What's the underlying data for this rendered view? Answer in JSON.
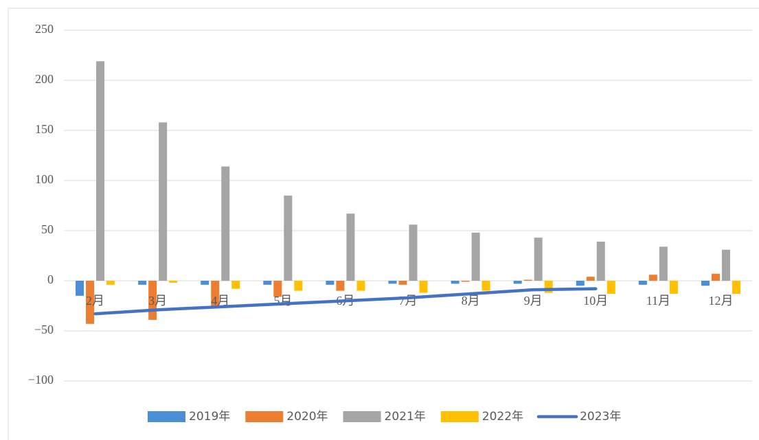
{
  "chart_data": {
    "type": "bar",
    "categories": [
      "2月",
      "3月",
      "4月",
      "5月",
      "6月",
      "7月",
      "8月",
      "9月",
      "10月",
      "11月",
      "12月"
    ],
    "series": [
      {
        "name": "2019年",
        "color": "#4a8fd6",
        "type": "bar",
        "values": [
          -15,
          -4,
          -4,
          -4,
          -4,
          -3,
          -3,
          -3,
          -5,
          -4,
          -5
        ]
      },
      {
        "name": "2020年",
        "color": "#ed7d31",
        "type": "bar",
        "values": [
          -43,
          -39,
          -26,
          -16,
          -10,
          -4,
          -1,
          1,
          4,
          6,
          7
        ]
      },
      {
        "name": "2021年",
        "color": "#a5a5a5",
        "type": "bar",
        "values": [
          219,
          158,
          114,
          85,
          67,
          56,
          48,
          43,
          39,
          34,
          31
        ]
      },
      {
        "name": "2022年",
        "color": "#ffc000",
        "type": "bar",
        "values": [
          -4,
          -2,
          -8,
          -10,
          -10,
          -12,
          -10,
          -12,
          -13,
          -13,
          -13
        ]
      },
      {
        "name": "2023年",
        "color": "#4472c4",
        "type": "line",
        "values": [
          -33,
          -29,
          -26,
          -23,
          -20,
          -17,
          -13,
          -9,
          -8,
          null,
          null
        ]
      }
    ],
    "ylim": [
      -100,
      250
    ],
    "yticks": [
      {
        "value": -100,
        "label": "−100"
      },
      {
        "value": -50,
        "label": "−50"
      },
      0,
      50,
      100,
      150,
      200,
      250
    ],
    "grid": true,
    "legend": "bottom"
  }
}
